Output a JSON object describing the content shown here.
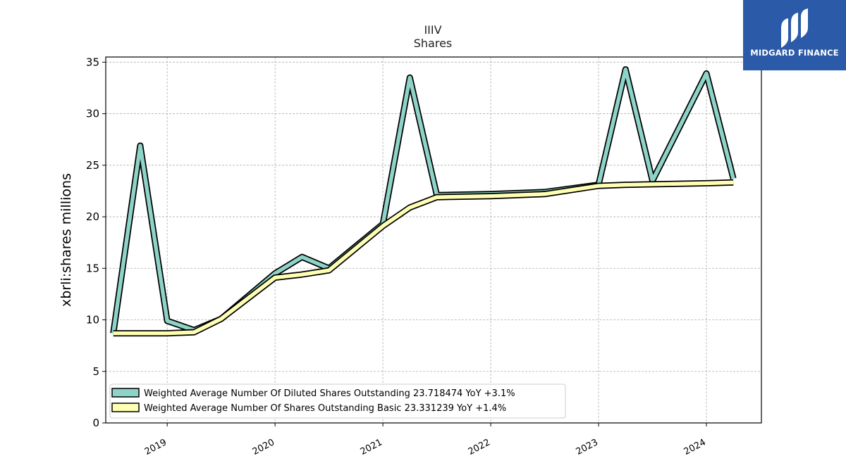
{
  "chart_data": {
    "type": "line",
    "title": "IIIV",
    "subtitle": "Shares",
    "ylabel": "xbrli:shares millions",
    "xlabel": "",
    "ylim": [
      0,
      35.5
    ],
    "xlim": [
      2018.43,
      2024.51
    ],
    "yticks": [
      0,
      5,
      10,
      15,
      20,
      25,
      30,
      35
    ],
    "xticks": [
      2019,
      2020,
      2021,
      2022,
      2023,
      2024
    ],
    "grid": true,
    "legend_position": "lower-left",
    "series": [
      {
        "name": "Weighted Average Number Of Diluted Shares Outstanding  23.718474 YoY +3.1%",
        "color": "#8dd3c7",
        "x": [
          2018.5,
          2018.75,
          2019.0,
          2019.25,
          2019.5,
          2020.0,
          2020.25,
          2020.5,
          2021.0,
          2021.25,
          2021.5,
          2022.0,
          2022.25,
          2022.5,
          2023.0,
          2023.25,
          2023.5,
          2024.0,
          2024.25
        ],
        "values": [
          8.7,
          26.9,
          9.9,
          9.0,
          10.1,
          14.5,
          16.1,
          15.0,
          19.3,
          33.5,
          22.1,
          22.2,
          22.3,
          22.4,
          23.1,
          34.3,
          23.5,
          33.9,
          23.7
        ]
      },
      {
        "name": "Weighted Average Number Of Shares Outstanding Basic  23.331239 YoY +1.4%",
        "color": "#ffffb3",
        "x": [
          2018.5,
          2018.75,
          2019.0,
          2019.25,
          2019.5,
          2020.0,
          2020.25,
          2020.5,
          2021.0,
          2021.25,
          2021.5,
          2022.0,
          2022.25,
          2022.5,
          2023.0,
          2023.25,
          2023.5,
          2024.0,
          2024.25
        ],
        "values": [
          8.7,
          8.7,
          8.7,
          8.8,
          10.1,
          14.1,
          14.4,
          14.8,
          19.1,
          20.9,
          21.9,
          22.0,
          22.1,
          22.2,
          23.0,
          23.1,
          23.15,
          23.25,
          23.33
        ]
      }
    ]
  },
  "logo": {
    "text": "MIDGARD FINANCE",
    "background": "#2a5aa8"
  }
}
